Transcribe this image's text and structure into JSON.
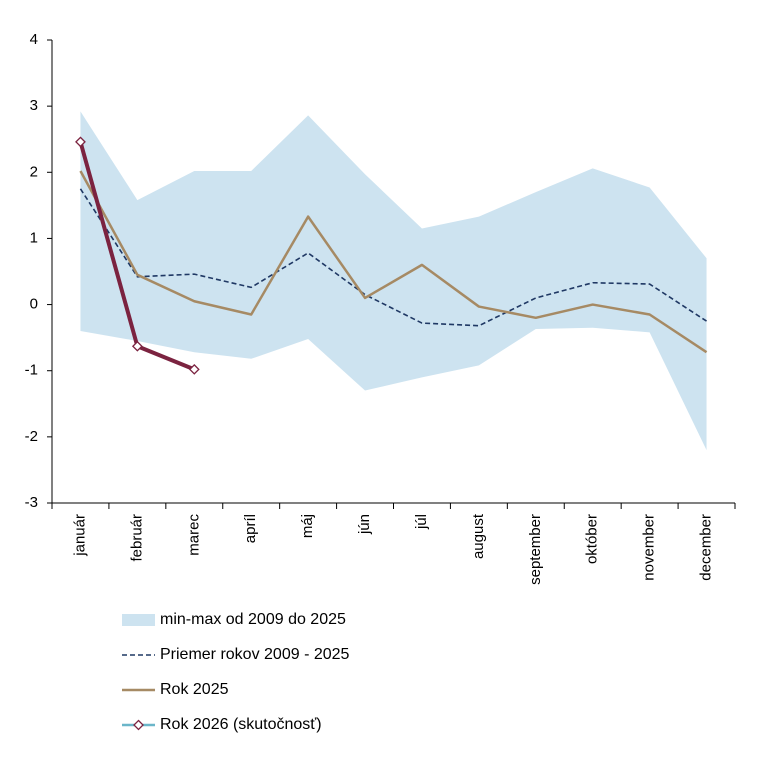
{
  "chart_data": {
    "type": "line",
    "categories": [
      "január",
      "február",
      "marec",
      "apríl",
      "máj",
      "jún",
      "júl",
      "august",
      "september",
      "október",
      "november",
      "december"
    ],
    "ylim": [
      -3,
      4
    ],
    "yticks": [
      -3,
      -2,
      -1,
      0,
      1,
      2,
      3,
      4
    ],
    "series": [
      {
        "name": "min-max od 2009 do 2025",
        "kind": "band",
        "color": "#cde3f0",
        "upper": [
          2.92,
          1.58,
          2.02,
          2.02,
          2.86,
          1.97,
          1.15,
          1.33,
          1.7,
          2.06,
          1.77,
          0.7
        ],
        "lower": [
          -0.4,
          -0.55,
          -0.72,
          -0.82,
          -0.52,
          -1.3,
          -1.1,
          -0.92,
          -0.37,
          -0.35,
          -0.42,
          -2.2
        ]
      },
      {
        "name": "Priemer rokov 2009 - 2025",
        "kind": "dashed",
        "color": "#1f3864",
        "values": [
          1.75,
          0.42,
          0.46,
          0.26,
          0.78,
          0.15,
          -0.28,
          -0.32,
          0.1,
          0.33,
          0.31,
          -0.25
        ]
      },
      {
        "name": "Rok 2025",
        "kind": "solid",
        "color": "#a68a64",
        "values": [
          2.02,
          0.45,
          0.05,
          -0.15,
          1.33,
          0.1,
          0.6,
          -0.03,
          -0.2,
          0.0,
          -0.15,
          -0.72
        ]
      },
      {
        "name": "Rok 2026 (skutočnosť)",
        "kind": "markers",
        "color": "#7b2340",
        "legend_color": "#6bb6c9",
        "values": [
          2.46,
          -0.63,
          -0.98,
          null,
          null,
          null,
          null,
          null,
          null,
          null,
          null,
          null
        ]
      }
    ]
  }
}
